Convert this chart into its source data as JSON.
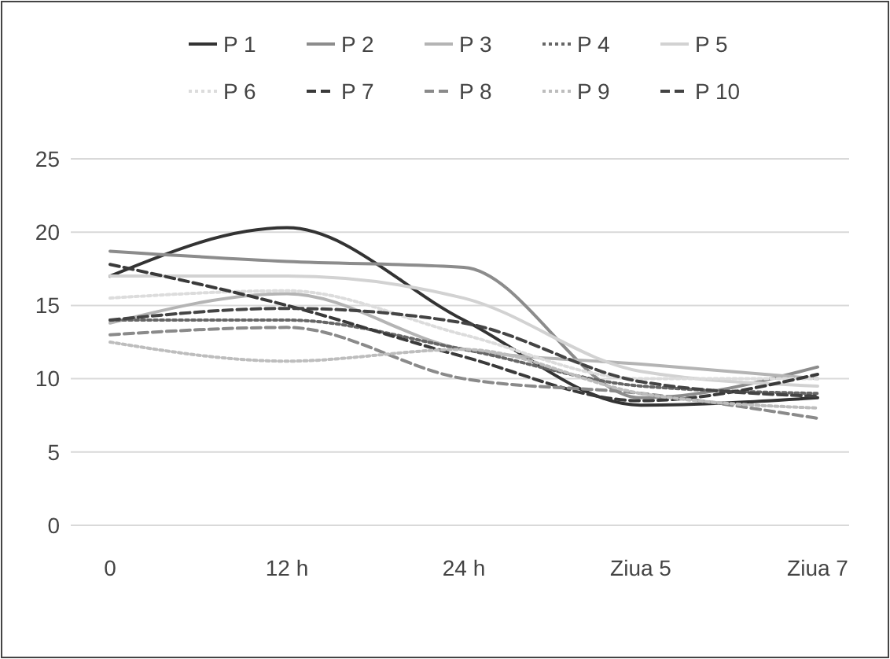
{
  "chart_data": {
    "type": "line",
    "categories": [
      "0",
      "12 h",
      "24 h",
      "Ziua 5",
      "Ziua 7"
    ],
    "ylim": [
      0,
      25
    ],
    "yticks": [
      0,
      5,
      10,
      15,
      20,
      25
    ],
    "grid": "y",
    "legend": "top",
    "series": [
      {
        "name": "P 1",
        "color": "#333333",
        "line_style": "solid",
        "values": [
          17,
          20.3,
          14,
          8.2,
          8.7
        ]
      },
      {
        "name": "P 2",
        "color": "#8c8c8c",
        "line_style": "solid",
        "values": [
          18.7,
          18,
          17.6,
          8.7,
          10.8
        ]
      },
      {
        "name": "P 3",
        "color": "#b4b4b4",
        "line_style": "solid",
        "values": [
          13.8,
          15.8,
          12,
          11,
          10
        ]
      },
      {
        "name": "P 4",
        "color": "#666666",
        "line_style": "dotted",
        "values": [
          14,
          14,
          12,
          9.5,
          9
        ]
      },
      {
        "name": "P 5",
        "color": "#d2d2d2",
        "line_style": "solid",
        "values": [
          17,
          17,
          15.5,
          10.5,
          9.5
        ]
      },
      {
        "name": "P 6",
        "color": "#dcdcdc",
        "line_style": "dotted",
        "values": [
          15.5,
          16,
          13,
          10,
          10
        ]
      },
      {
        "name": "P 7",
        "color": "#3a3a3a",
        "line_style": "dashed",
        "values": [
          17.8,
          15,
          11.5,
          8.5,
          10.3
        ]
      },
      {
        "name": "P 8",
        "color": "#8a8a8a",
        "line_style": "dashed",
        "values": [
          13,
          13.5,
          10,
          9,
          7.3
        ]
      },
      {
        "name": "P 9",
        "color": "#bdbdbd",
        "line_style": "dotted",
        "values": [
          12.5,
          11.2,
          12,
          9,
          8
        ]
      },
      {
        "name": "P 10",
        "color": "#444444",
        "line_style": "dashed",
        "values": [
          14,
          14.8,
          13.8,
          9.8,
          8.8
        ]
      }
    ]
  }
}
